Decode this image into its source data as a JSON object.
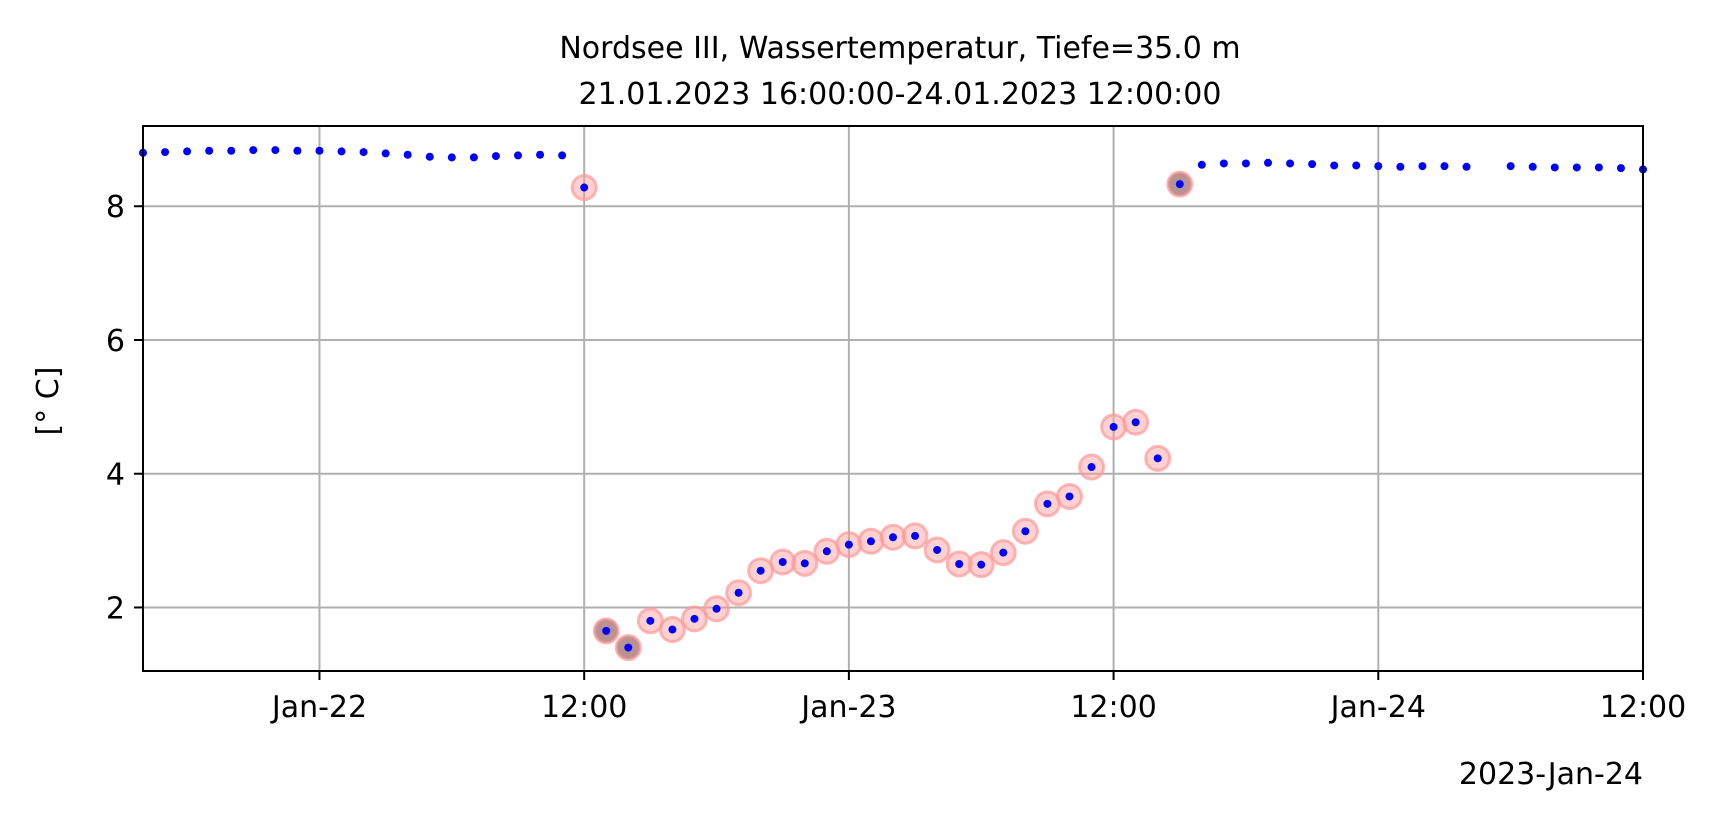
{
  "chart_data": {
    "type": "scatter",
    "title": "Nordsee III, Wassertemperatur, Tiefe=35.0 m",
    "subtitle": "21.01.2023 16:00:00-24.01.2023 12:00:00",
    "xlabel": "",
    "ylabel": "[° C]",
    "offset_label": "2023-Jan-24",
    "xlim": [
      "2023-01-21T16:00",
      "2023-01-24T12:00"
    ],
    "ylim": [
      1.05,
      9.2
    ],
    "grid": true,
    "x_ticks": [
      {
        "x": "2023-01-22T00:00",
        "label": "Jan-22"
      },
      {
        "x": "2023-01-22T12:00",
        "label": "12:00"
      },
      {
        "x": "2023-01-23T00:00",
        "label": "Jan-23"
      },
      {
        "x": "2023-01-23T12:00",
        "label": "12:00"
      },
      {
        "x": "2023-01-24T00:00",
        "label": "Jan-24"
      },
      {
        "x": "2023-01-24T12:00",
        "label": "12:00"
      }
    ],
    "y_ticks": [
      {
        "y": 2,
        "label": "2"
      },
      {
        "y": 4,
        "label": "4"
      },
      {
        "y": 6,
        "label": "6"
      },
      {
        "y": 8,
        "label": "8"
      }
    ],
    "colors": {
      "points": "#0000ff",
      "flag_light": "#ff9999",
      "flag_dark": "#8b4a4a",
      "grid": "#b0b0b0"
    },
    "series": [
      {
        "points": [
          [
            "2023-01-21T16:00",
            8.8
          ],
          [
            "2023-01-21T17:00",
            8.81
          ],
          [
            "2023-01-21T18:00",
            8.82
          ],
          [
            "2023-01-21T19:00",
            8.83
          ],
          [
            "2023-01-21T20:00",
            8.83
          ],
          [
            "2023-01-21T21:00",
            8.84
          ],
          [
            "2023-01-21T22:00",
            8.84
          ],
          [
            "2023-01-21T23:00",
            8.83
          ],
          [
            "2023-01-22T00:00",
            8.83
          ],
          [
            "2023-01-22T01:00",
            8.82
          ],
          [
            "2023-01-22T02:00",
            8.81
          ],
          [
            "2023-01-22T03:00",
            8.79
          ],
          [
            "2023-01-22T04:00",
            8.77
          ],
          [
            "2023-01-22T05:00",
            8.74
          ],
          [
            "2023-01-22T06:00",
            8.73
          ],
          [
            "2023-01-22T07:00",
            8.73
          ],
          [
            "2023-01-22T08:00",
            8.75
          ],
          [
            "2023-01-22T09:00",
            8.76
          ],
          [
            "2023-01-22T10:00",
            8.77
          ],
          [
            "2023-01-22T11:00",
            8.76
          ],
          [
            "2023-01-22T12:00",
            8.28,
            "light"
          ],
          [
            "2023-01-22T13:00",
            1.65,
            "dark"
          ],
          [
            "2023-01-22T14:00",
            1.4,
            "dark"
          ],
          [
            "2023-01-22T15:00",
            1.8,
            "light"
          ],
          [
            "2023-01-22T16:00",
            1.67,
            "light"
          ],
          [
            "2023-01-22T17:00",
            1.83,
            "light"
          ],
          [
            "2023-01-22T18:00",
            1.98,
            "light"
          ],
          [
            "2023-01-22T19:00",
            2.22,
            "light"
          ],
          [
            "2023-01-22T20:00",
            2.55,
            "light"
          ],
          [
            "2023-01-22T21:00",
            2.68,
            "light"
          ],
          [
            "2023-01-22T22:00",
            2.66,
            "light"
          ],
          [
            "2023-01-22T23:00",
            2.84,
            "light"
          ],
          [
            "2023-01-23T00:00",
            2.94,
            "light"
          ],
          [
            "2023-01-23T01:00",
            2.99,
            "light"
          ],
          [
            "2023-01-23T02:00",
            3.05,
            "light"
          ],
          [
            "2023-01-23T03:00",
            3.07,
            "light"
          ],
          [
            "2023-01-23T04:00",
            2.86,
            "light"
          ],
          [
            "2023-01-23T05:00",
            2.65,
            "light"
          ],
          [
            "2023-01-23T06:00",
            2.64,
            "light"
          ],
          [
            "2023-01-23T07:00",
            2.82,
            "light"
          ],
          [
            "2023-01-23T08:00",
            3.14,
            "light"
          ],
          [
            "2023-01-23T09:00",
            3.55,
            "light"
          ],
          [
            "2023-01-23T10:00",
            3.66,
            "light"
          ],
          [
            "2023-01-23T11:00",
            4.1,
            "light"
          ],
          [
            "2023-01-23T12:00",
            4.7,
            "light"
          ],
          [
            "2023-01-23T13:00",
            4.77,
            "light"
          ],
          [
            "2023-01-23T14:00",
            4.23,
            "light"
          ],
          [
            "2023-01-23T15:00",
            8.33,
            "dark"
          ],
          [
            "2023-01-23T16:00",
            8.62
          ],
          [
            "2023-01-23T17:00",
            8.64
          ],
          [
            "2023-01-23T18:00",
            8.64
          ],
          [
            "2023-01-23T19:00",
            8.65
          ],
          [
            "2023-01-23T20:00",
            8.64
          ],
          [
            "2023-01-23T21:00",
            8.63
          ],
          [
            "2023-01-23T22:00",
            8.61
          ],
          [
            "2023-01-23T23:00",
            8.61
          ],
          [
            "2023-01-24T00:00",
            8.6
          ],
          [
            "2023-01-24T01:00",
            8.59
          ],
          [
            "2023-01-24T02:00",
            8.6
          ],
          [
            "2023-01-24T03:00",
            8.6
          ],
          [
            "2023-01-24T04:00",
            8.59
          ],
          [
            "2023-01-24T06:00",
            8.6
          ],
          [
            "2023-01-24T07:00",
            8.59
          ],
          [
            "2023-01-24T08:00",
            8.58
          ],
          [
            "2023-01-24T09:00",
            8.58
          ],
          [
            "2023-01-24T10:00",
            8.58
          ],
          [
            "2023-01-24T11:00",
            8.57
          ],
          [
            "2023-01-24T12:00",
            8.55
          ]
        ]
      }
    ]
  }
}
